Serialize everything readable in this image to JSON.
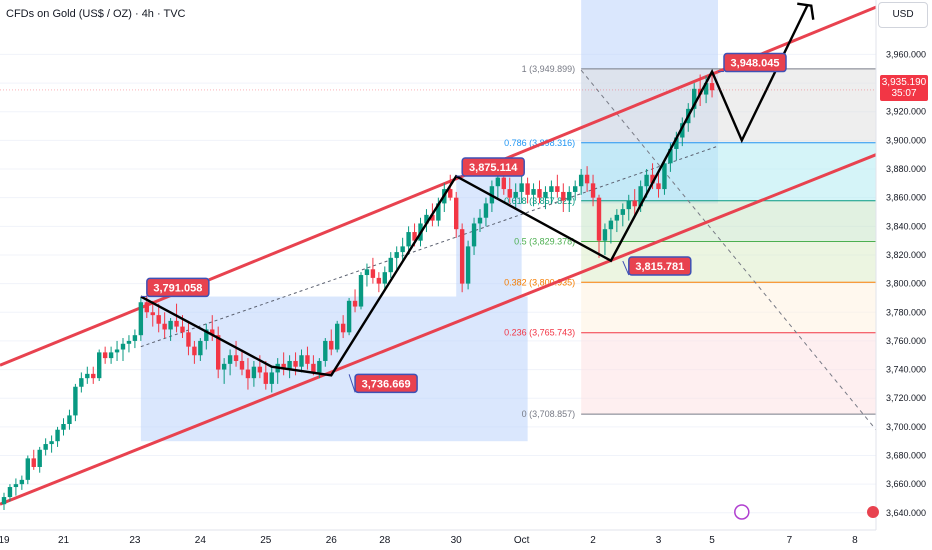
{
  "header": {
    "title": "CFDs on Gold (US$ / OZ) · 4h · TVC"
  },
  "price_scale": {
    "currency": "USD",
    "current_price": "3,935.190",
    "countdown": "35:07",
    "accent_color": "#f23645"
  },
  "chart_data": {
    "type": "candlestick",
    "title": "CFDs on Gold (US$ / OZ) · 4h · TVC",
    "ylim": [
      3628,
      3998
    ],
    "y_ticks": [
      "3,640.000",
      "3,660.000",
      "3,680.000",
      "3,700.000",
      "3,720.000",
      "3,740.000",
      "3,760.000",
      "3,780.000",
      "3,800.000",
      "3,820.000",
      "3,840.000",
      "3,860.000",
      "3,880.000",
      "3,900.000",
      "3,920.000",
      "3,940.000",
      "3,960.000"
    ],
    "x_ticks": [
      {
        "label": "19",
        "i": 0
      },
      {
        "label": "21",
        "i": 10
      },
      {
        "label": "23",
        "i": 22
      },
      {
        "label": "24",
        "i": 33
      },
      {
        "label": "25",
        "i": 44
      },
      {
        "label": "26",
        "i": 55
      },
      {
        "label": "28",
        "i": 64
      },
      {
        "label": "30",
        "i": 76
      },
      {
        "label": "Oct",
        "i": 87
      },
      {
        "label": "2",
        "i": 99
      },
      {
        "label": "3",
        "i": 110
      },
      {
        "label": "5",
        "i": 119
      },
      {
        "label": "7",
        "i": 132
      },
      {
        "label": "8",
        "i": 143
      }
    ],
    "ohlc": [
      [
        3646,
        3654,
        3642,
        3651
      ],
      [
        3651,
        3660,
        3648,
        3658
      ],
      [
        3658,
        3664,
        3652,
        3660
      ],
      [
        3660,
        3666,
        3656,
        3663
      ],
      [
        3663,
        3680,
        3660,
        3678
      ],
      [
        3678,
        3684,
        3670,
        3672
      ],
      [
        3672,
        3686,
        3668,
        3684
      ],
      [
        3684,
        3692,
        3680,
        3688
      ],
      [
        3688,
        3694,
        3682,
        3690
      ],
      [
        3690,
        3700,
        3686,
        3698
      ],
      [
        3698,
        3706,
        3694,
        3702
      ],
      [
        3702,
        3712,
        3698,
        3708
      ],
      [
        3708,
        3730,
        3704,
        3728
      ],
      [
        3728,
        3738,
        3724,
        3734
      ],
      [
        3734,
        3742,
        3730,
        3737
      ],
      [
        3737,
        3742,
        3730,
        3734
      ],
      [
        3734,
        3754,
        3732,
        3752
      ],
      [
        3752,
        3756,
        3744,
        3748
      ],
      [
        3748,
        3756,
        3744,
        3752
      ],
      [
        3752,
        3760,
        3746,
        3754
      ],
      [
        3754,
        3762,
        3746,
        3758
      ],
      [
        3758,
        3764,
        3752,
        3760
      ],
      [
        3760,
        3768,
        3755,
        3764
      ],
      [
        3764,
        3790,
        3760,
        3787
      ],
      [
        3787,
        3792,
        3776,
        3780
      ],
      [
        3780,
        3788,
        3770,
        3778
      ],
      [
        3778,
        3786,
        3766,
        3772
      ],
      [
        3772,
        3780,
        3762,
        3768
      ],
      [
        3768,
        3776,
        3760,
        3774
      ],
      [
        3774,
        3786,
        3766,
        3770
      ],
      [
        3770,
        3778,
        3762,
        3766
      ],
      [
        3766,
        3774,
        3750,
        3756
      ],
      [
        3756,
        3760,
        3744,
        3750
      ],
      [
        3750,
        3762,
        3746,
        3760
      ],
      [
        3760,
        3772,
        3754,
        3768
      ],
      [
        3768,
        3778,
        3760,
        3764
      ],
      [
        3764,
        3770,
        3734,
        3740
      ],
      [
        3740,
        3748,
        3730,
        3744
      ],
      [
        3744,
        3754,
        3736,
        3750
      ],
      [
        3750,
        3760,
        3742,
        3746
      ],
      [
        3746,
        3754,
        3736,
        3740
      ],
      [
        3740,
        3748,
        3726,
        3734
      ],
      [
        3734,
        3746,
        3728,
        3742
      ],
      [
        3742,
        3750,
        3734,
        3738
      ],
      [
        3738,
        3746,
        3726,
        3730
      ],
      [
        3730,
        3742,
        3724,
        3738
      ],
      [
        3738,
        3748,
        3730,
        3744
      ],
      [
        3744,
        3752,
        3736,
        3740
      ],
      [
        3740,
        3750,
        3734,
        3746
      ],
      [
        3746,
        3752,
        3736,
        3742
      ],
      [
        3742,
        3754,
        3738,
        3750
      ],
      [
        3750,
        3756,
        3740,
        3744
      ],
      [
        3744,
        3750,
        3736,
        3738
      ],
      [
        3738,
        3748,
        3734,
        3746
      ],
      [
        3746,
        3762,
        3742,
        3760
      ],
      [
        3760,
        3768,
        3750,
        3754
      ],
      [
        3754,
        3774,
        3752,
        3772
      ],
      [
        3772,
        3778,
        3762,
        3766
      ],
      [
        3766,
        3790,
        3764,
        3788
      ],
      [
        3788,
        3796,
        3780,
        3784
      ],
      [
        3784,
        3808,
        3782,
        3806
      ],
      [
        3806,
        3814,
        3798,
        3810
      ],
      [
        3810,
        3818,
        3800,
        3804
      ],
      [
        3804,
        3808,
        3794,
        3800
      ],
      [
        3800,
        3812,
        3796,
        3808
      ],
      [
        3808,
        3822,
        3804,
        3818
      ],
      [
        3818,
        3826,
        3810,
        3822
      ],
      [
        3822,
        3832,
        3816,
        3826
      ],
      [
        3826,
        3840,
        3820,
        3836
      ],
      [
        3836,
        3842,
        3826,
        3830
      ],
      [
        3830,
        3846,
        3826,
        3842
      ],
      [
        3842,
        3852,
        3836,
        3848
      ],
      [
        3848,
        3856,
        3840,
        3844
      ],
      [
        3844,
        3860,
        3840,
        3856
      ],
      [
        3856,
        3870,
        3850,
        3866
      ],
      [
        3866,
        3876,
        3858,
        3860
      ],
      [
        3860,
        3864,
        3832,
        3838
      ],
      [
        3838,
        3842,
        3794,
        3800
      ],
      [
        3800,
        3830,
        3796,
        3826
      ],
      [
        3826,
        3846,
        3820,
        3842
      ],
      [
        3842,
        3852,
        3836,
        3846
      ],
      [
        3846,
        3860,
        3840,
        3856
      ],
      [
        3856,
        3872,
        3850,
        3868
      ],
      [
        3868,
        3880,
        3860,
        3874
      ],
      [
        3874,
        3884,
        3862,
        3866
      ],
      [
        3866,
        3874,
        3856,
        3860
      ],
      [
        3860,
        3870,
        3852,
        3864
      ],
      [
        3864,
        3876,
        3856,
        3870
      ],
      [
        3870,
        3874,
        3856,
        3862
      ],
      [
        3862,
        3870,
        3854,
        3866
      ],
      [
        3866,
        3872,
        3856,
        3860
      ],
      [
        3860,
        3868,
        3852,
        3864
      ],
      [
        3864,
        3872,
        3856,
        3868
      ],
      [
        3868,
        3876,
        3860,
        3864
      ],
      [
        3864,
        3870,
        3850,
        3858
      ],
      [
        3858,
        3868,
        3850,
        3864
      ],
      [
        3864,
        3872,
        3858,
        3868
      ],
      [
        3868,
        3880,
        3862,
        3876
      ],
      [
        3876,
        3882,
        3864,
        3870
      ],
      [
        3870,
        3876,
        3854,
        3860
      ],
      [
        3860,
        3862,
        3818,
        3830
      ],
      [
        3830,
        3842,
        3820,
        3838
      ],
      [
        3838,
        3846,
        3828,
        3844
      ],
      [
        3844,
        3852,
        3836,
        3848
      ],
      [
        3848,
        3856,
        3840,
        3852
      ],
      [
        3852,
        3862,
        3844,
        3858
      ],
      [
        3858,
        3866,
        3848,
        3854
      ],
      [
        3854,
        3872,
        3850,
        3868
      ],
      [
        3868,
        3880,
        3860,
        3876
      ],
      [
        3876,
        3884,
        3866,
        3870
      ],
      [
        3870,
        3878,
        3860,
        3866
      ],
      [
        3866,
        3886,
        3862,
        3884
      ],
      [
        3884,
        3898,
        3878,
        3894
      ],
      [
        3894,
        3906,
        3886,
        3902
      ],
      [
        3902,
        3916,
        3896,
        3912
      ],
      [
        3912,
        3926,
        3906,
        3922
      ],
      [
        3922,
        3940,
        3916,
        3936
      ],
      [
        3936,
        3946,
        3924,
        3932
      ],
      [
        3932,
        3945,
        3926,
        3940
      ],
      [
        3940,
        3948,
        3930,
        3935
      ]
    ],
    "fibonacci": [
      {
        "ratio": "1",
        "value": "3,949.899",
        "color": "#787b86"
      },
      {
        "ratio": "0.786",
        "value": "3,898.316",
        "color": "#2196f3"
      },
      {
        "ratio": "0.618",
        "value": "3,857.821",
        "color": "#089981"
      },
      {
        "ratio": "0.5",
        "value": "3,829.378",
        "color": "#4caf50"
      },
      {
        "ratio": "0.382",
        "value": "3,800.935",
        "color": "#f57c00"
      },
      {
        "ratio": "0.236",
        "value": "3,765.743",
        "color": "#f23645"
      },
      {
        "ratio": "0",
        "value": "3,708.857",
        "color": "#787b86"
      }
    ],
    "callouts": [
      "3,791.058",
      "3,736.669",
      "3,875.114",
      "3,815.781",
      "3,948.045"
    ],
    "colors": {
      "up": "#089981",
      "down": "#f23645",
      "channel": "#e8424f",
      "band": "#bbd3fb"
    }
  }
}
